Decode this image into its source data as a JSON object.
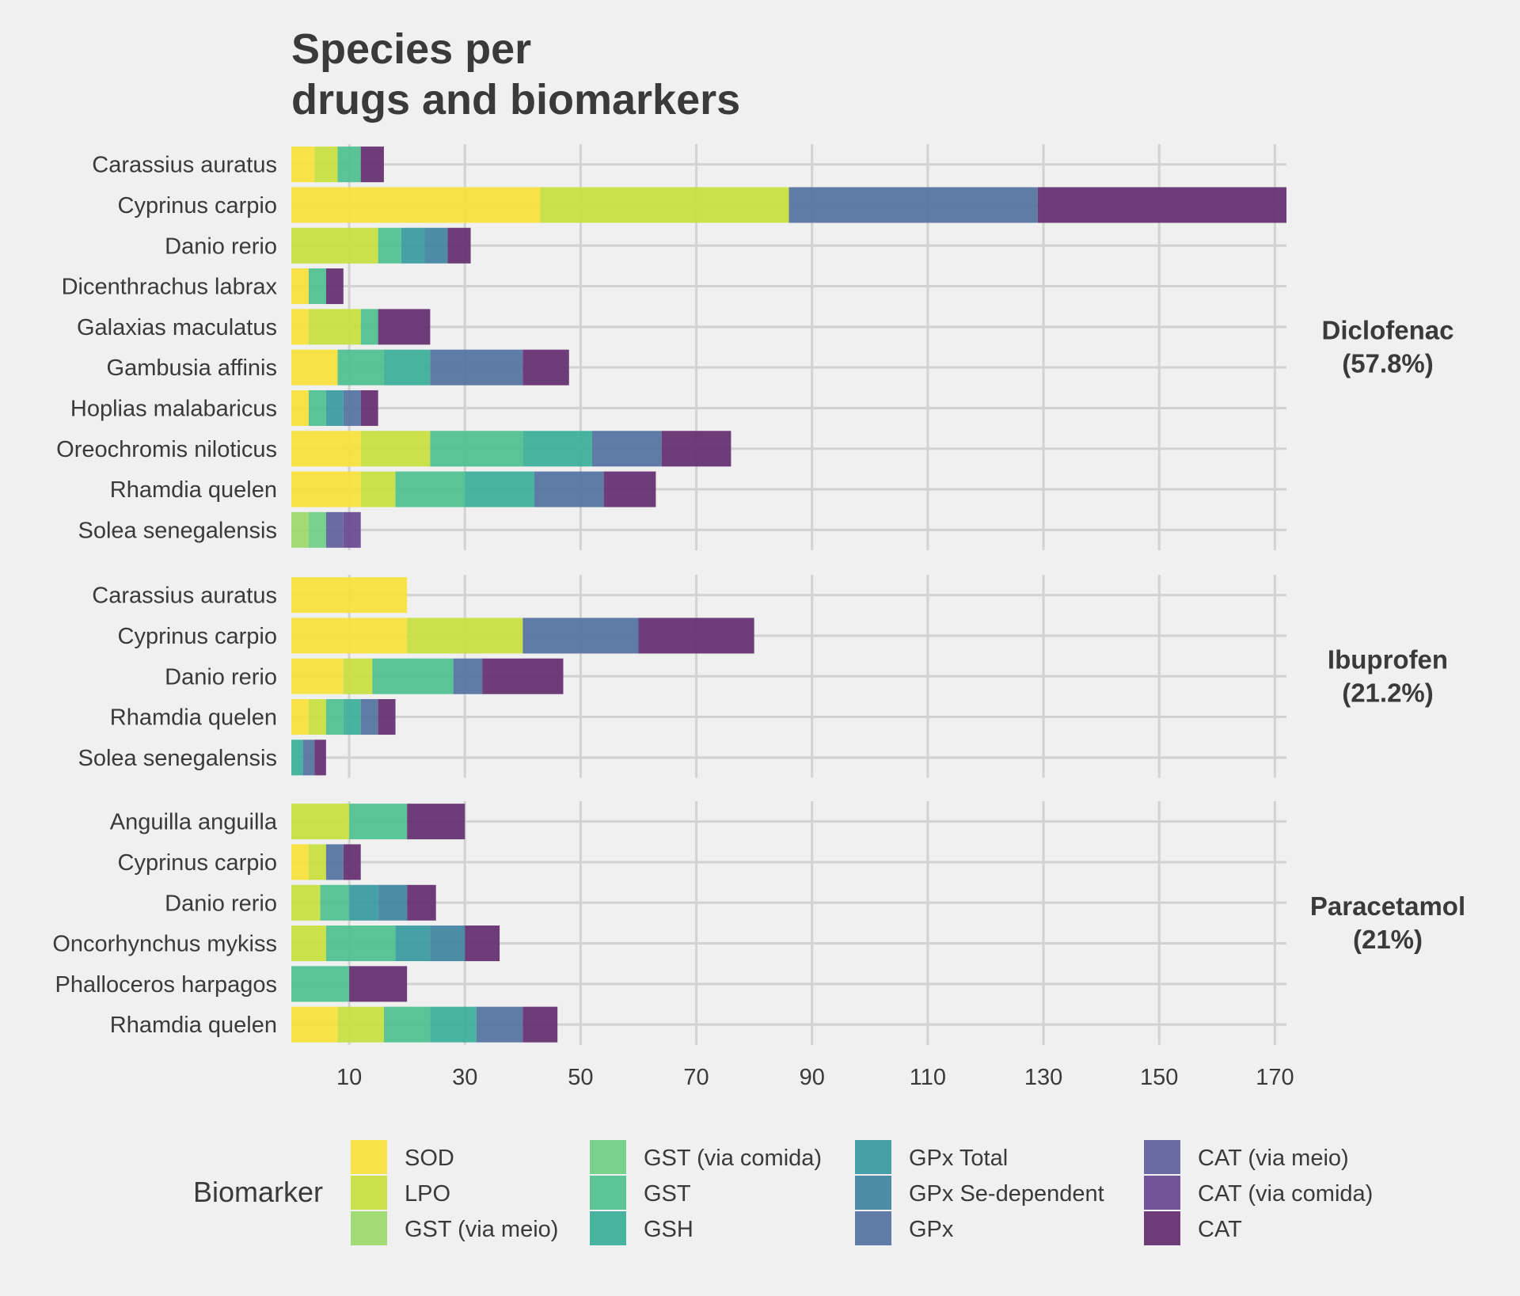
{
  "chart_data": {
    "type": "bar",
    "orientation": "horizontal",
    "stacked": true,
    "title": "Species per\ndrugs and biomarkers",
    "xlim": [
      0,
      172
    ],
    "x_ticks": [
      10,
      30,
      50,
      70,
      90,
      110,
      130,
      150,
      170
    ],
    "grid": true,
    "legend_position": "bottom",
    "legend_title": "Biomarker",
    "biomarkers": [
      {
        "name": "SOD",
        "color": "#f7e23a"
      },
      {
        "name": "LPO",
        "color": "#c8e03e"
      },
      {
        "name": "GST (via meio)",
        "color": "#9bd86a"
      },
      {
        "name": "GST (via comida)",
        "color": "#6ecf82"
      },
      {
        "name": "GST",
        "color": "#4ec08e"
      },
      {
        "name": "GSH",
        "color": "#3aaf98"
      },
      {
        "name": "GPx Total",
        "color": "#369aa0"
      },
      {
        "name": "GPx Se-dependent",
        "color": "#3f839f"
      },
      {
        "name": "GPx",
        "color": "#5272a0"
      },
      {
        "name": "CAT (via meio)",
        "color": "#5f5f9c"
      },
      {
        "name": "CAT (via comida)",
        "color": "#674891"
      },
      {
        "name": "CAT",
        "color": "#642c70"
      }
    ],
    "panels": [
      {
        "drug": "Diclofenac",
        "share": "(57.8%)",
        "species": [
          {
            "name": "Solea senegalensis",
            "segments": [
              [
                "GST (via meio)",
                3
              ],
              [
                "GST (via comida)",
                3
              ],
              [
                "CAT (via meio)",
                3
              ],
              [
                "CAT (via comida)",
                3
              ]
            ]
          },
          {
            "name": "Rhamdia quelen",
            "segments": [
              [
                "SOD",
                12
              ],
              [
                "LPO",
                6
              ],
              [
                "GST",
                12
              ],
              [
                "GSH",
                12
              ],
              [
                "GPx",
                12
              ],
              [
                "CAT",
                9
              ]
            ]
          },
          {
            "name": "Oreochromis niloticus",
            "segments": [
              [
                "SOD",
                12
              ],
              [
                "LPO",
                12
              ],
              [
                "GST",
                16
              ],
              [
                "GSH",
                12
              ],
              [
                "GPx",
                12
              ],
              [
                "CAT",
                12
              ]
            ]
          },
          {
            "name": "Hoplias malabaricus",
            "segments": [
              [
                "SOD",
                3
              ],
              [
                "GST",
                3
              ],
              [
                "GPx Total",
                3
              ],
              [
                "GPx",
                3
              ],
              [
                "CAT",
                3
              ]
            ]
          },
          {
            "name": "Gambusia affinis",
            "segments": [
              [
                "SOD",
                8
              ],
              [
                "GST",
                8
              ],
              [
                "GSH",
                8
              ],
              [
                "GPx",
                16
              ],
              [
                "CAT",
                8
              ]
            ]
          },
          {
            "name": "Galaxias maculatus",
            "segments": [
              [
                "SOD",
                3
              ],
              [
                "LPO",
                9
              ],
              [
                "GST",
                3
              ],
              [
                "CAT",
                9
              ]
            ]
          },
          {
            "name": "Dicenthrachus labrax",
            "segments": [
              [
                "SOD",
                3
              ],
              [
                "GST",
                3
              ],
              [
                "CAT",
                3
              ]
            ]
          },
          {
            "name": "Danio rerio",
            "segments": [
              [
                "LPO",
                15
              ],
              [
                "GST",
                4
              ],
              [
                "GPx Total",
                4
              ],
              [
                "GPx Se-dependent",
                4
              ],
              [
                "CAT",
                4
              ]
            ]
          },
          {
            "name": "Cyprinus carpio",
            "segments": [
              [
                "SOD",
                43
              ],
              [
                "LPO",
                43
              ],
              [
                "GPx",
                43
              ],
              [
                "CAT",
                43
              ]
            ]
          },
          {
            "name": "Carassius auratus",
            "segments": [
              [
                "SOD",
                4
              ],
              [
                "LPO",
                4
              ],
              [
                "GST",
                4
              ],
              [
                "CAT",
                4
              ]
            ]
          }
        ]
      },
      {
        "drug": "Ibuprofen",
        "share": "(21.2%)",
        "species": [
          {
            "name": "Solea senegalensis",
            "segments": [
              [
                "GSH",
                2
              ],
              [
                "GPx",
                2
              ],
              [
                "CAT",
                2
              ]
            ]
          },
          {
            "name": "Rhamdia quelen",
            "segments": [
              [
                "SOD",
                3
              ],
              [
                "LPO",
                3
              ],
              [
                "GST",
                3
              ],
              [
                "GSH",
                3
              ],
              [
                "GPx",
                3
              ],
              [
                "CAT",
                3
              ]
            ]
          },
          {
            "name": "Danio rerio",
            "segments": [
              [
                "SOD",
                9
              ],
              [
                "LPO",
                5
              ],
              [
                "GST",
                14
              ],
              [
                "GPx",
                5
              ],
              [
                "CAT",
                14
              ]
            ]
          },
          {
            "name": "Cyprinus carpio",
            "segments": [
              [
                "SOD",
                20
              ],
              [
                "LPO",
                20
              ],
              [
                "GPx",
                20
              ],
              [
                "CAT",
                20
              ]
            ]
          },
          {
            "name": "Carassius auratus",
            "segments": [
              [
                "SOD",
                20
              ]
            ]
          }
        ]
      },
      {
        "drug": "Paracetamol",
        "share": "(21%)",
        "species": [
          {
            "name": "Rhamdia quelen",
            "segments": [
              [
                "SOD",
                8
              ],
              [
                "LPO",
                8
              ],
              [
                "GST",
                8
              ],
              [
                "GSH",
                8
              ],
              [
                "GPx",
                8
              ],
              [
                "CAT",
                6
              ]
            ]
          },
          {
            "name": "Phalloceros harpagos",
            "segments": [
              [
                "GST",
                10
              ],
              [
                "CAT",
                10
              ]
            ]
          },
          {
            "name": "Oncorhynchus mykiss",
            "segments": [
              [
                "LPO",
                6
              ],
              [
                "GST",
                12
              ],
              [
                "GPx Total",
                6
              ],
              [
                "GPx Se-dependent",
                6
              ],
              [
                "CAT",
                6
              ]
            ]
          },
          {
            "name": "Danio rerio",
            "segments": [
              [
                "LPO",
                5
              ],
              [
                "GST",
                5
              ],
              [
                "GPx Total",
                5
              ],
              [
                "GPx Se-dependent",
                5
              ],
              [
                "CAT",
                5
              ]
            ]
          },
          {
            "name": "Cyprinus carpio",
            "segments": [
              [
                "SOD",
                3
              ],
              [
                "LPO",
                3
              ],
              [
                "GPx",
                3
              ],
              [
                "CAT",
                3
              ]
            ]
          },
          {
            "name": "Anguilla anguilla",
            "segments": [
              [
                "LPO",
                10
              ],
              [
                "GST",
                10
              ],
              [
                "CAT",
                10
              ]
            ]
          }
        ]
      }
    ]
  }
}
